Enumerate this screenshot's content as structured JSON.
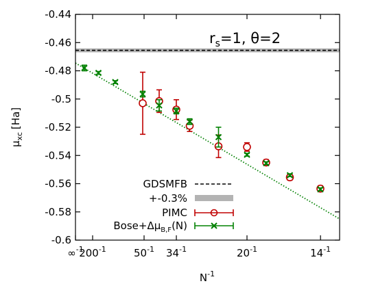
{
  "chart_data": {
    "type": "scatter",
    "xlabel": "N",
    "xlabel_sup": "-1",
    "ylabel_main": "μ",
    "ylabel_sub": "xc",
    "ylabel_unit": "[Ha]",
    "annotation": {
      "rs_main": "r",
      "rs_sub": "s",
      "rest": "=1, θ=2"
    },
    "xlim": [
      0,
      0.077
    ],
    "ylim": [
      -0.6,
      -0.44
    ],
    "yticks": [
      {
        "value": -0.44,
        "label": "-0.44"
      },
      {
        "value": -0.46,
        "label": "-0.46"
      },
      {
        "value": -0.48,
        "label": "-0.48"
      },
      {
        "value": -0.5,
        "label": "-0.5"
      },
      {
        "value": -0.52,
        "label": "-0.52"
      },
      {
        "value": -0.54,
        "label": "-0.54"
      },
      {
        "value": -0.56,
        "label": "-0.56"
      },
      {
        "value": -0.58,
        "label": "-0.58"
      },
      {
        "value": -0.6,
        "label": "-0.6"
      }
    ],
    "xticks": [
      {
        "value": 0,
        "base": "∞",
        "sup": "-1"
      },
      {
        "value": 0.005,
        "base": "200",
        "sup": "-1"
      },
      {
        "value": 0.02,
        "base": "50",
        "sup": "-1"
      },
      {
        "value": 0.02941,
        "base": "34",
        "sup": "-1"
      },
      {
        "value": 0.05,
        "base": "20",
        "sup": "-1"
      },
      {
        "value": 0.07143,
        "base": "14",
        "sup": "-1"
      }
    ],
    "legend": {
      "position": "bottom-left",
      "entries": [
        {
          "label": "GDSMFB",
          "style": "dashed-line",
          "color": "#000000"
        },
        {
          "label": "+-0.3%",
          "style": "band",
          "color": "#b3b3b3"
        },
        {
          "label": "PIMC",
          "style": "circle-errorbar",
          "color": "#c00000"
        },
        {
          "label_main": "Bose+Δμ",
          "label_sub": "B,F",
          "label_tail": "(N)",
          "style": "cross-errorbar",
          "color": "#008000"
        }
      ]
    },
    "reference": {
      "name": "GDSMFB",
      "value": -0.4655,
      "band_fraction": 0.003
    },
    "series": [
      {
        "name": "PIMC",
        "marker": "circle",
        "color": "#c00000",
        "points": [
          {
            "x": 0.0196,
            "y": -0.503,
            "err": 0.022
          },
          {
            "x": 0.0244,
            "y": -0.5015,
            "err": 0.008
          },
          {
            "x": 0.0294,
            "y": -0.5075,
            "err": 0.007
          },
          {
            "x": 0.0333,
            "y": -0.519,
            "err": 0.004
          },
          {
            "x": 0.0417,
            "y": -0.5335,
            "err": 0.008
          },
          {
            "x": 0.05,
            "y": -0.534,
            "err": 0.003
          },
          {
            "x": 0.0556,
            "y": -0.545,
            "err": 0.002
          },
          {
            "x": 0.0625,
            "y": -0.5555,
            "err": 0.002
          },
          {
            "x": 0.0714,
            "y": -0.5635,
            "err": 0.002
          }
        ]
      },
      {
        "name": "Bose+ΔμB,F(N)",
        "marker": "cross",
        "color": "#008000",
        "points": [
          {
            "x": 0.0026,
            "y": -0.478,
            "err": 0.002
          },
          {
            "x": 0.0067,
            "y": -0.4815,
            "err": 0.001
          },
          {
            "x": 0.0116,
            "y": -0.488,
            "err": 0.001
          },
          {
            "x": 0.0196,
            "y": -0.4965,
            "err": 0.002
          },
          {
            "x": 0.0244,
            "y": -0.5045,
            "err": 0.004
          },
          {
            "x": 0.0294,
            "y": -0.5085,
            "err": 0.002
          },
          {
            "x": 0.0333,
            "y": -0.516,
            "err": 0.002
          },
          {
            "x": 0.0417,
            "y": -0.527,
            "err": 0.007
          },
          {
            "x": 0.05,
            "y": -0.5395,
            "err": 0.001
          },
          {
            "x": 0.0556,
            "y": -0.5455,
            "err": 0.001
          },
          {
            "x": 0.0625,
            "y": -0.554,
            "err": 0.001
          },
          {
            "x": 0.0714,
            "y": -0.564,
            "err": 0.001
          }
        ]
      }
    ],
    "fit_line": {
      "color": "#008000",
      "style": "dotted",
      "intercept": -0.4745,
      "slope": -1.435
    }
  }
}
